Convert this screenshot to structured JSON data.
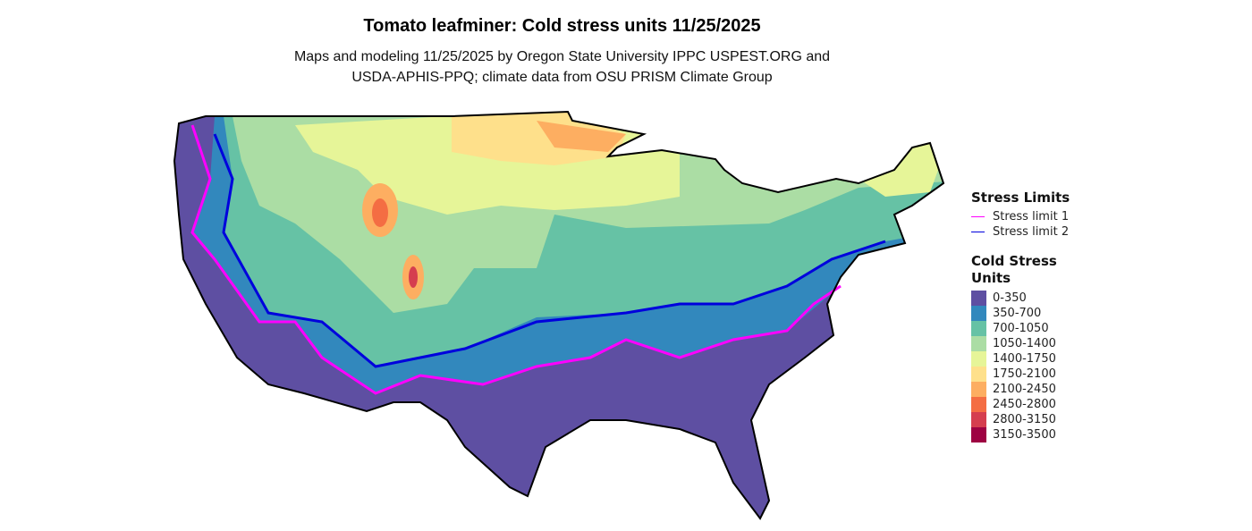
{
  "title": "Tomato leafminer: Cold stress units 11/25/2025",
  "subtitle_line1": "Maps and modeling 11/25/2025 by Oregon State University IPPC USPEST.ORG and",
  "subtitle_line2": "USDA-APHIS-PPQ; climate data from OSU PRISM Climate Group",
  "legend": {
    "limits_title": "Stress Limits",
    "limits": [
      {
        "label": "Stress limit 1",
        "color": "#FF00FF"
      },
      {
        "label": "Stress limit 2",
        "color": "#0000DD"
      }
    ],
    "units_title_line1": "Cold Stress",
    "units_title_line2": "Units",
    "classes": [
      {
        "label": "0-350",
        "color": "#5E4FA2"
      },
      {
        "label": "350-700",
        "color": "#3288BD"
      },
      {
        "label": "700-1050",
        "color": "#66C2A5"
      },
      {
        "label": "1050-1400",
        "color": "#ABDDA4"
      },
      {
        "label": "1400-1750",
        "color": "#E6F598"
      },
      {
        "label": "1750-2100",
        "color": "#FEE08B"
      },
      {
        "label": "2100-2450",
        "color": "#FDAE61"
      },
      {
        "label": "2450-2800",
        "color": "#F46D43"
      },
      {
        "label": "2800-3150",
        "color": "#D53E4F"
      },
      {
        "label": "3150-3500",
        "color": "#9E0142"
      }
    ]
  }
}
